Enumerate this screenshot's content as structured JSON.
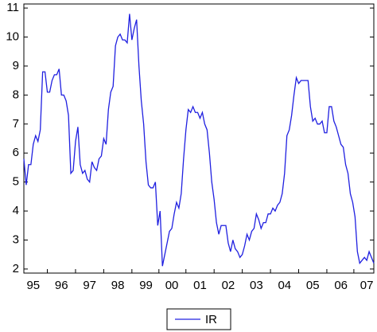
{
  "chart_data": {
    "type": "line",
    "categories": [
      null,
      null,
      null,
      null,
      "95",
      null,
      null,
      null,
      null,
      null,
      null,
      null,
      null,
      null,
      null,
      null,
      "96",
      null,
      null,
      null,
      null,
      null,
      null,
      null,
      null,
      null,
      null,
      null,
      "97",
      null,
      null,
      null,
      null,
      null,
      null,
      null,
      null,
      null,
      null,
      null,
      "98",
      null,
      null,
      null,
      null,
      null,
      null,
      null,
      null,
      null,
      null,
      null,
      "99",
      null,
      null,
      null,
      null,
      null,
      null,
      null,
      null,
      null,
      null,
      "00",
      null,
      null,
      null,
      null,
      null,
      null,
      null,
      null,
      null,
      null,
      null,
      "01",
      null,
      null,
      null,
      null,
      null,
      null,
      null,
      null,
      null,
      null,
      null,
      "02",
      null,
      null,
      null,
      null,
      null,
      null,
      null,
      null,
      null,
      null,
      null,
      "03",
      null,
      null,
      null,
      null,
      null,
      null,
      null,
      null,
      null,
      null,
      null,
      "04",
      null,
      null,
      null,
      null,
      null,
      null,
      null,
      null,
      null,
      null,
      null,
      "05",
      null,
      null,
      null,
      null,
      null,
      null,
      null,
      null,
      null,
      null,
      null,
      "06",
      null,
      null,
      null,
      null,
      null,
      null,
      null,
      null,
      null,
      null,
      "07",
      null,
      null,
      null
    ],
    "series": [
      {
        "name": "IR",
        "color": "#2020e0",
        "values": [
          5.8,
          4.9,
          5.6,
          5.6,
          6.3,
          6.6,
          6.4,
          6.8,
          8.8,
          8.8,
          8.1,
          8.1,
          8.5,
          8.7,
          8.7,
          8.9,
          8.0,
          8.0,
          7.8,
          7.3,
          5.3,
          5.4,
          6.4,
          6.9,
          5.6,
          5.3,
          5.4,
          5.1,
          5.0,
          5.7,
          5.5,
          5.4,
          5.8,
          5.9,
          6.5,
          6.3,
          7.5,
          8.1,
          8.3,
          9.7,
          10.0,
          10.1,
          9.9,
          9.9,
          9.8,
          10.8,
          9.9,
          10.3,
          10.6,
          9.0,
          7.8,
          7.0,
          5.7,
          4.9,
          4.8,
          4.8,
          5.0,
          3.5,
          4.0,
          2.1,
          2.5,
          2.9,
          3.3,
          3.4,
          3.9,
          4.3,
          4.1,
          4.6,
          5.8,
          6.8,
          7.5,
          7.4,
          7.6,
          7.4,
          7.4,
          7.2,
          7.4,
          7.0,
          6.8,
          6.0,
          5.0,
          4.4,
          3.6,
          3.2,
          3.5,
          3.5,
          3.5,
          2.9,
          2.6,
          3.0,
          2.7,
          2.6,
          2.4,
          2.5,
          2.8,
          3.2,
          3.0,
          3.3,
          3.4,
          3.9,
          3.7,
          3.4,
          3.6,
          3.6,
          3.9,
          3.9,
          4.1,
          4.0,
          4.2,
          4.3,
          4.6,
          5.3,
          6.6,
          6.8,
          7.3,
          8.0,
          8.6,
          8.4,
          8.5,
          8.5,
          8.5,
          8.5,
          7.6,
          7.1,
          7.2,
          7.0,
          7.0,
          7.1,
          6.7,
          6.7,
          7.6,
          7.6,
          7.1,
          6.9,
          6.6,
          6.3,
          6.2,
          5.6,
          5.3,
          4.6,
          4.3,
          3.8,
          2.6,
          2.2,
          2.3,
          2.4,
          2.3,
          2.6,
          2.4,
          2.2
        ]
      }
    ],
    "ylim": [
      1.86,
      11.14
    ],
    "yticks": [
      2,
      3,
      4,
      5,
      6,
      7,
      8,
      9,
      10,
      11
    ]
  }
}
